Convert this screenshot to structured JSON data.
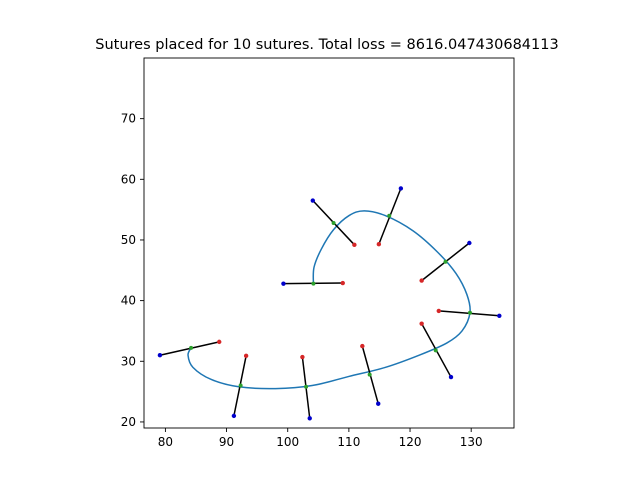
{
  "chart_data": {
    "type": "scatter",
    "title": "Sutures placed for 10 sutures. Total loss = 8616.047430684113",
    "xlabel": "",
    "ylabel": "",
    "xlim": [
      76.5,
      137
    ],
    "ylim": [
      19.0,
      80.0
    ],
    "x_ticks": [
      80,
      90,
      100,
      110,
      120,
      130
    ],
    "y_ticks": [
      20,
      30,
      40,
      50,
      60,
      70
    ],
    "grid": false,
    "legend": "none",
    "colors": {
      "wound_curve": "#1f77b4",
      "suture_line": "#000000",
      "insertion_point": "#d62728",
      "extraction_point": "#0000cc",
      "center_point": "#2ca02c"
    },
    "wound_curve": [
      [
        104.2,
        42.8
      ],
      [
        104.3,
        45.5
      ],
      [
        105.5,
        48.5
      ],
      [
        107.5,
        51.7
      ],
      [
        110.0,
        54.0
      ],
      [
        112.5,
        54.8
      ],
      [
        116.0,
        54.0
      ],
      [
        120.5,
        51.5
      ],
      [
        124.5,
        48.0
      ],
      [
        127.5,
        44.5
      ],
      [
        129.3,
        41.0
      ],
      [
        129.8,
        38.0
      ],
      [
        128.5,
        35.0
      ],
      [
        126.0,
        33.0
      ],
      [
        121.5,
        31.0
      ],
      [
        116.0,
        29.0
      ],
      [
        110.0,
        27.5
      ],
      [
        104.0,
        26.0
      ],
      [
        98.0,
        25.5
      ],
      [
        92.0,
        25.8
      ],
      [
        87.5,
        27.0
      ],
      [
        84.5,
        29.0
      ],
      [
        83.7,
        31.0
      ],
      [
        84.2,
        32.2
      ]
    ],
    "sutures": [
      {
        "insertion": [
          88.8,
          33.2
        ],
        "extraction": [
          79.1,
          31.0
        ],
        "center": [
          84.2,
          32.2
        ]
      },
      {
        "insertion": [
          93.2,
          30.9
        ],
        "extraction": [
          91.2,
          21.0
        ],
        "center": [
          92.3,
          26.0
        ]
      },
      {
        "insertion": [
          102.4,
          30.7
        ],
        "extraction": [
          103.6,
          20.6
        ],
        "center": [
          103.0,
          25.8
        ]
      },
      {
        "insertion": [
          112.2,
          32.5
        ],
        "extraction": [
          114.8,
          23.0
        ],
        "center": [
          113.4,
          27.8
        ]
      },
      {
        "insertion": [
          121.9,
          36.2
        ],
        "extraction": [
          126.7,
          27.4
        ],
        "center": [
          124.2,
          31.8
        ]
      },
      {
        "insertion": [
          124.7,
          38.3
        ],
        "extraction": [
          134.6,
          37.5
        ],
        "center": [
          129.8,
          38.0
        ]
      },
      {
        "insertion": [
          121.9,
          43.3
        ],
        "extraction": [
          129.7,
          49.5
        ],
        "center": [
          125.8,
          46.4
        ]
      },
      {
        "insertion": [
          114.9,
          49.3
        ],
        "extraction": [
          118.5,
          58.5
        ],
        "center": [
          116.6,
          54.0
        ]
      },
      {
        "insertion": [
          110.9,
          49.2
        ],
        "extraction": [
          104.1,
          56.5
        ],
        "center": [
          107.5,
          52.8
        ]
      },
      {
        "insertion": [
          109.0,
          42.9
        ],
        "extraction": [
          99.3,
          42.8
        ],
        "center": [
          104.2,
          42.8
        ]
      }
    ]
  }
}
